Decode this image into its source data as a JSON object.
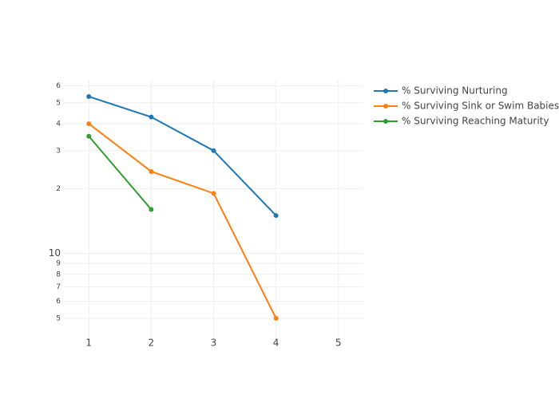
{
  "chart_data": {
    "type": "line",
    "x": [
      1,
      2,
      3,
      4
    ],
    "series": [
      {
        "name": "% Surviving Nurturing",
        "color": "#1f77b4",
        "values": [
          53.5,
          43,
          30,
          15
        ]
      },
      {
        "name": "% Surviving Sink or Swim Babies",
        "color": "#ff7f0e",
        "values": [
          40,
          24,
          19,
          5
        ]
      },
      {
        "name": "% Surviving Reaching Maturity",
        "color": "#2ca02c",
        "values": [
          35,
          16,
          null,
          null
        ]
      }
    ],
    "xlim": [
      0.6,
      5.4
    ],
    "xticks": [
      1,
      2,
      3,
      4,
      5
    ],
    "ylim": [
      4,
      64
    ],
    "ylog": true,
    "yticks": [
      5,
      6,
      7,
      8,
      9,
      10,
      {
        "value": 20,
        "label": "2"
      },
      {
        "value": 30,
        "label": "3"
      },
      {
        "value": 40,
        "label": "4"
      },
      {
        "value": 50,
        "label": "5"
      },
      {
        "value": 60,
        "label": "6"
      }
    ],
    "grid": true,
    "legend": "right"
  }
}
